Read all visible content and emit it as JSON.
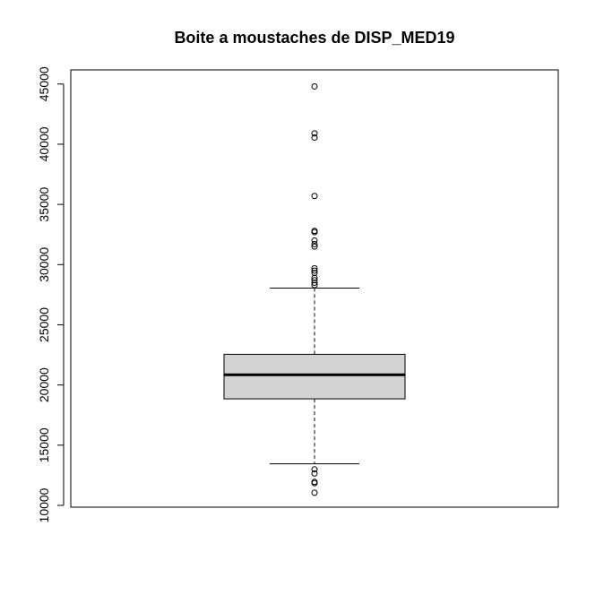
{
  "chart_data": {
    "type": "boxplot",
    "title": "Boite a moustaches de DISP_MED19",
    "xlabel": "",
    "ylabel": "",
    "ylim": [
      10000,
      46000
    ],
    "yticks": [
      10000,
      15000,
      20000,
      25000,
      30000,
      35000,
      40000,
      45000
    ],
    "ytick_labels": [
      "10000",
      "15000",
      "20000",
      "25000",
      "30000",
      "35000",
      "40000",
      "45000"
    ],
    "box": {
      "whisker_low": 13450,
      "q1": 18850,
      "median": 20850,
      "q3": 22550,
      "whisker_high": 28050
    },
    "outliers": [
      44800,
      40900,
      40550,
      35700,
      32800,
      32700,
      32000,
      31700,
      31500,
      29700,
      29500,
      29300,
      28900,
      28700,
      28500,
      28300,
      13000,
      12650,
      11950,
      11850,
      11050
    ],
    "box_fill": "#d3d3d3",
    "grid": false
  }
}
